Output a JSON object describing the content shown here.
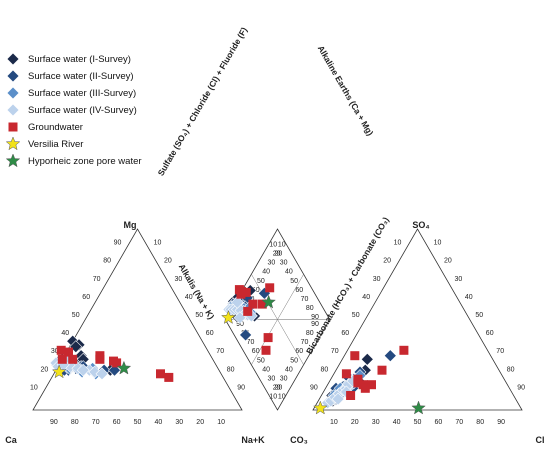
{
  "chart_data": {
    "type": "scatter",
    "subtype": "piper-diagram",
    "grid": false,
    "legend_position": "top-left",
    "ternary_labels": {
      "cation": {
        "top": "Mg",
        "left": "Ca",
        "right": "Na+K"
      },
      "anion": {
        "top": "SO₄",
        "left": "CO₃",
        "right": "Cl"
      }
    },
    "axis_labels": {
      "cation_right": "Alkalis (Na + K)",
      "anion_left": "Bicarbonate (HCO₃) + Carbonate (CO₃)",
      "diamond_left": "Sulfate (SO₄) + Chloride (Cl) + Fluoride (F)",
      "diamond_right": "Alkaline Earths (Ca + Mg)"
    },
    "tick_labels": {
      "cation_bottom": [
        "90",
        "80",
        "70",
        "60",
        "50",
        "40",
        "30",
        "20",
        "10"
      ],
      "cation_left": [
        "10",
        "20",
        "30",
        "40",
        "50",
        "60",
        "70",
        "80",
        "90"
      ],
      "cation_right": [
        "10",
        "20",
        "30",
        "40",
        "50",
        "60",
        "70",
        "80",
        "90"
      ],
      "anion_bottom": [
        "10",
        "20",
        "30",
        "40",
        "50",
        "60",
        "70",
        "80",
        "90"
      ],
      "anion_left": [
        "90",
        "80",
        "70",
        "60",
        "50",
        "40",
        "30",
        "20",
        "10"
      ],
      "anion_right": [
        "10",
        "20",
        "30",
        "40",
        "50",
        "60",
        "70",
        "80",
        "90"
      ],
      "diamond_lower_left": [
        "10",
        "20",
        "30",
        "40",
        "50",
        "60",
        "70",
        "80",
        "90"
      ],
      "diamond_upper_left": [
        "90",
        "80",
        "70",
        "60",
        "50",
        "40",
        "30",
        "20",
        "10"
      ],
      "diamond_upper_right": [
        "10",
        "20",
        "30",
        "40",
        "50",
        "60",
        "70",
        "80",
        "90"
      ],
      "diamond_lower_right": [
        "90",
        "80",
        "70",
        "60",
        "50",
        "40",
        "30",
        "20",
        "10"
      ]
    },
    "series": [
      {
        "name": "Surface water (I-Survey)",
        "marker": "diamond",
        "color": "#1b2a4a",
        "cation": [
          [
            28,
            72
          ],
          [
            26,
            73
          ],
          [
            25,
            74
          ],
          [
            24,
            75
          ],
          [
            23,
            75
          ],
          [
            22,
            76
          ],
          [
            27,
            72
          ],
          [
            26,
            76
          ],
          [
            24,
            72
          ],
          [
            38,
            62
          ],
          [
            36,
            60
          ],
          [
            35,
            62
          ],
          [
            22,
            52
          ],
          [
            26,
            67
          ],
          [
            30,
            62
          ],
          [
            28,
            62
          ]
        ],
        "anion": [
          [
            5,
            7
          ],
          [
            6,
            8
          ],
          [
            8,
            8
          ],
          [
            10,
            7
          ],
          [
            12,
            8
          ],
          [
            15,
            10
          ],
          [
            11,
            10
          ],
          [
            9,
            9
          ],
          [
            7,
            6
          ],
          [
            13,
            12
          ],
          [
            16,
            14
          ],
          [
            14,
            9
          ],
          [
            18,
            12
          ],
          [
            22,
            14
          ],
          [
            28,
            12
          ],
          [
            8,
            5
          ]
        ]
      },
      {
        "name": "Surface water (II-Survey)",
        "marker": "diamond",
        "color": "#244a80",
        "cation": [
          [
            26,
            73
          ],
          [
            25,
            71
          ],
          [
            24,
            73
          ],
          [
            23,
            72
          ],
          [
            22,
            72
          ],
          [
            22,
            74
          ],
          [
            25,
            76
          ],
          [
            24,
            69
          ],
          [
            24,
            65
          ],
          [
            23,
            68
          ],
          [
            22,
            55
          ],
          [
            24,
            64
          ],
          [
            22,
            50
          ],
          [
            26,
            68
          ]
        ],
        "anion": [
          [
            6,
            8
          ],
          [
            8,
            9
          ],
          [
            9,
            9
          ],
          [
            11,
            10
          ],
          [
            13,
            8
          ],
          [
            15,
            11
          ],
          [
            10,
            6
          ],
          [
            12,
            13
          ],
          [
            17,
            12
          ],
          [
            21,
            12
          ],
          [
            30,
            22
          ],
          [
            18,
            8
          ],
          [
            5,
            6
          ],
          [
            12,
            5
          ]
        ]
      },
      {
        "name": "Surface water (III-Survey)",
        "marker": "diamond",
        "color": "#5b8fc9",
        "cation": [
          [
            27,
            74
          ],
          [
            26,
            71
          ],
          [
            24,
            72
          ],
          [
            23,
            71
          ],
          [
            24,
            68
          ],
          [
            22,
            66
          ],
          [
            22,
            62
          ],
          [
            21,
            66
          ],
          [
            25,
            72
          ],
          [
            20,
            60
          ],
          [
            23,
            60
          ],
          [
            24,
            68
          ]
        ],
        "anion": [
          [
            6,
            7
          ],
          [
            7,
            8
          ],
          [
            9,
            9
          ],
          [
            11,
            9
          ],
          [
            10,
            8
          ],
          [
            13,
            11
          ],
          [
            15,
            12
          ],
          [
            13,
            9
          ],
          [
            8,
            6
          ],
          [
            17,
            11
          ],
          [
            19,
            13
          ],
          [
            12,
            7
          ]
        ]
      },
      {
        "name": "Surface water (IV-Survey)",
        "marker": "diamond",
        "color": "#bcd2ec",
        "cation": [
          [
            26,
            76
          ],
          [
            24,
            76
          ],
          [
            27,
            70
          ],
          [
            24,
            70
          ],
          [
            23,
            67
          ],
          [
            22,
            62
          ],
          [
            21,
            60
          ],
          [
            20,
            57
          ],
          [
            22,
            65
          ],
          [
            25,
            73
          ]
        ],
        "anion": [
          [
            4,
            5
          ],
          [
            5,
            6
          ],
          [
            7,
            7
          ],
          [
            9,
            8
          ],
          [
            11,
            9
          ],
          [
            12,
            10
          ],
          [
            14,
            10
          ],
          [
            16,
            11
          ],
          [
            6,
            9
          ],
          [
            10,
            11
          ]
        ]
      },
      {
        "name": "Groundwater",
        "marker": "square",
        "color": "#c8282f",
        "cation": [
          [
            33,
            70
          ],
          [
            32,
            67
          ],
          [
            28,
            72
          ],
          [
            28,
            54
          ],
          [
            26,
            47
          ],
          [
            27,
            48
          ],
          [
            20,
            29
          ],
          [
            18,
            26
          ],
          [
            30,
            53
          ],
          [
            28,
            67
          ]
        ],
        "anion": [
          [
            17,
            13
          ],
          [
            15,
            14
          ],
          [
            14,
            17
          ],
          [
            14,
            21
          ],
          [
            22,
            22
          ],
          [
            33,
            27
          ],
          [
            12,
            19
          ],
          [
            8,
            14
          ],
          [
            20,
            6
          ],
          [
            30,
            5
          ]
        ]
      },
      {
        "name": "Versilia River",
        "marker": "star",
        "color": "#f2e21a",
        "cation": [
          [
            21,
            77
          ]
        ],
        "anion": [
          [
            1,
            3
          ]
        ]
      },
      {
        "name": "Hyporheic zone pore water",
        "marker": "star",
        "color": "#2e8b46",
        "cation": [
          [
            23,
            45
          ]
        ],
        "anion": [
          [
            1,
            50
          ]
        ]
      }
    ]
  }
}
